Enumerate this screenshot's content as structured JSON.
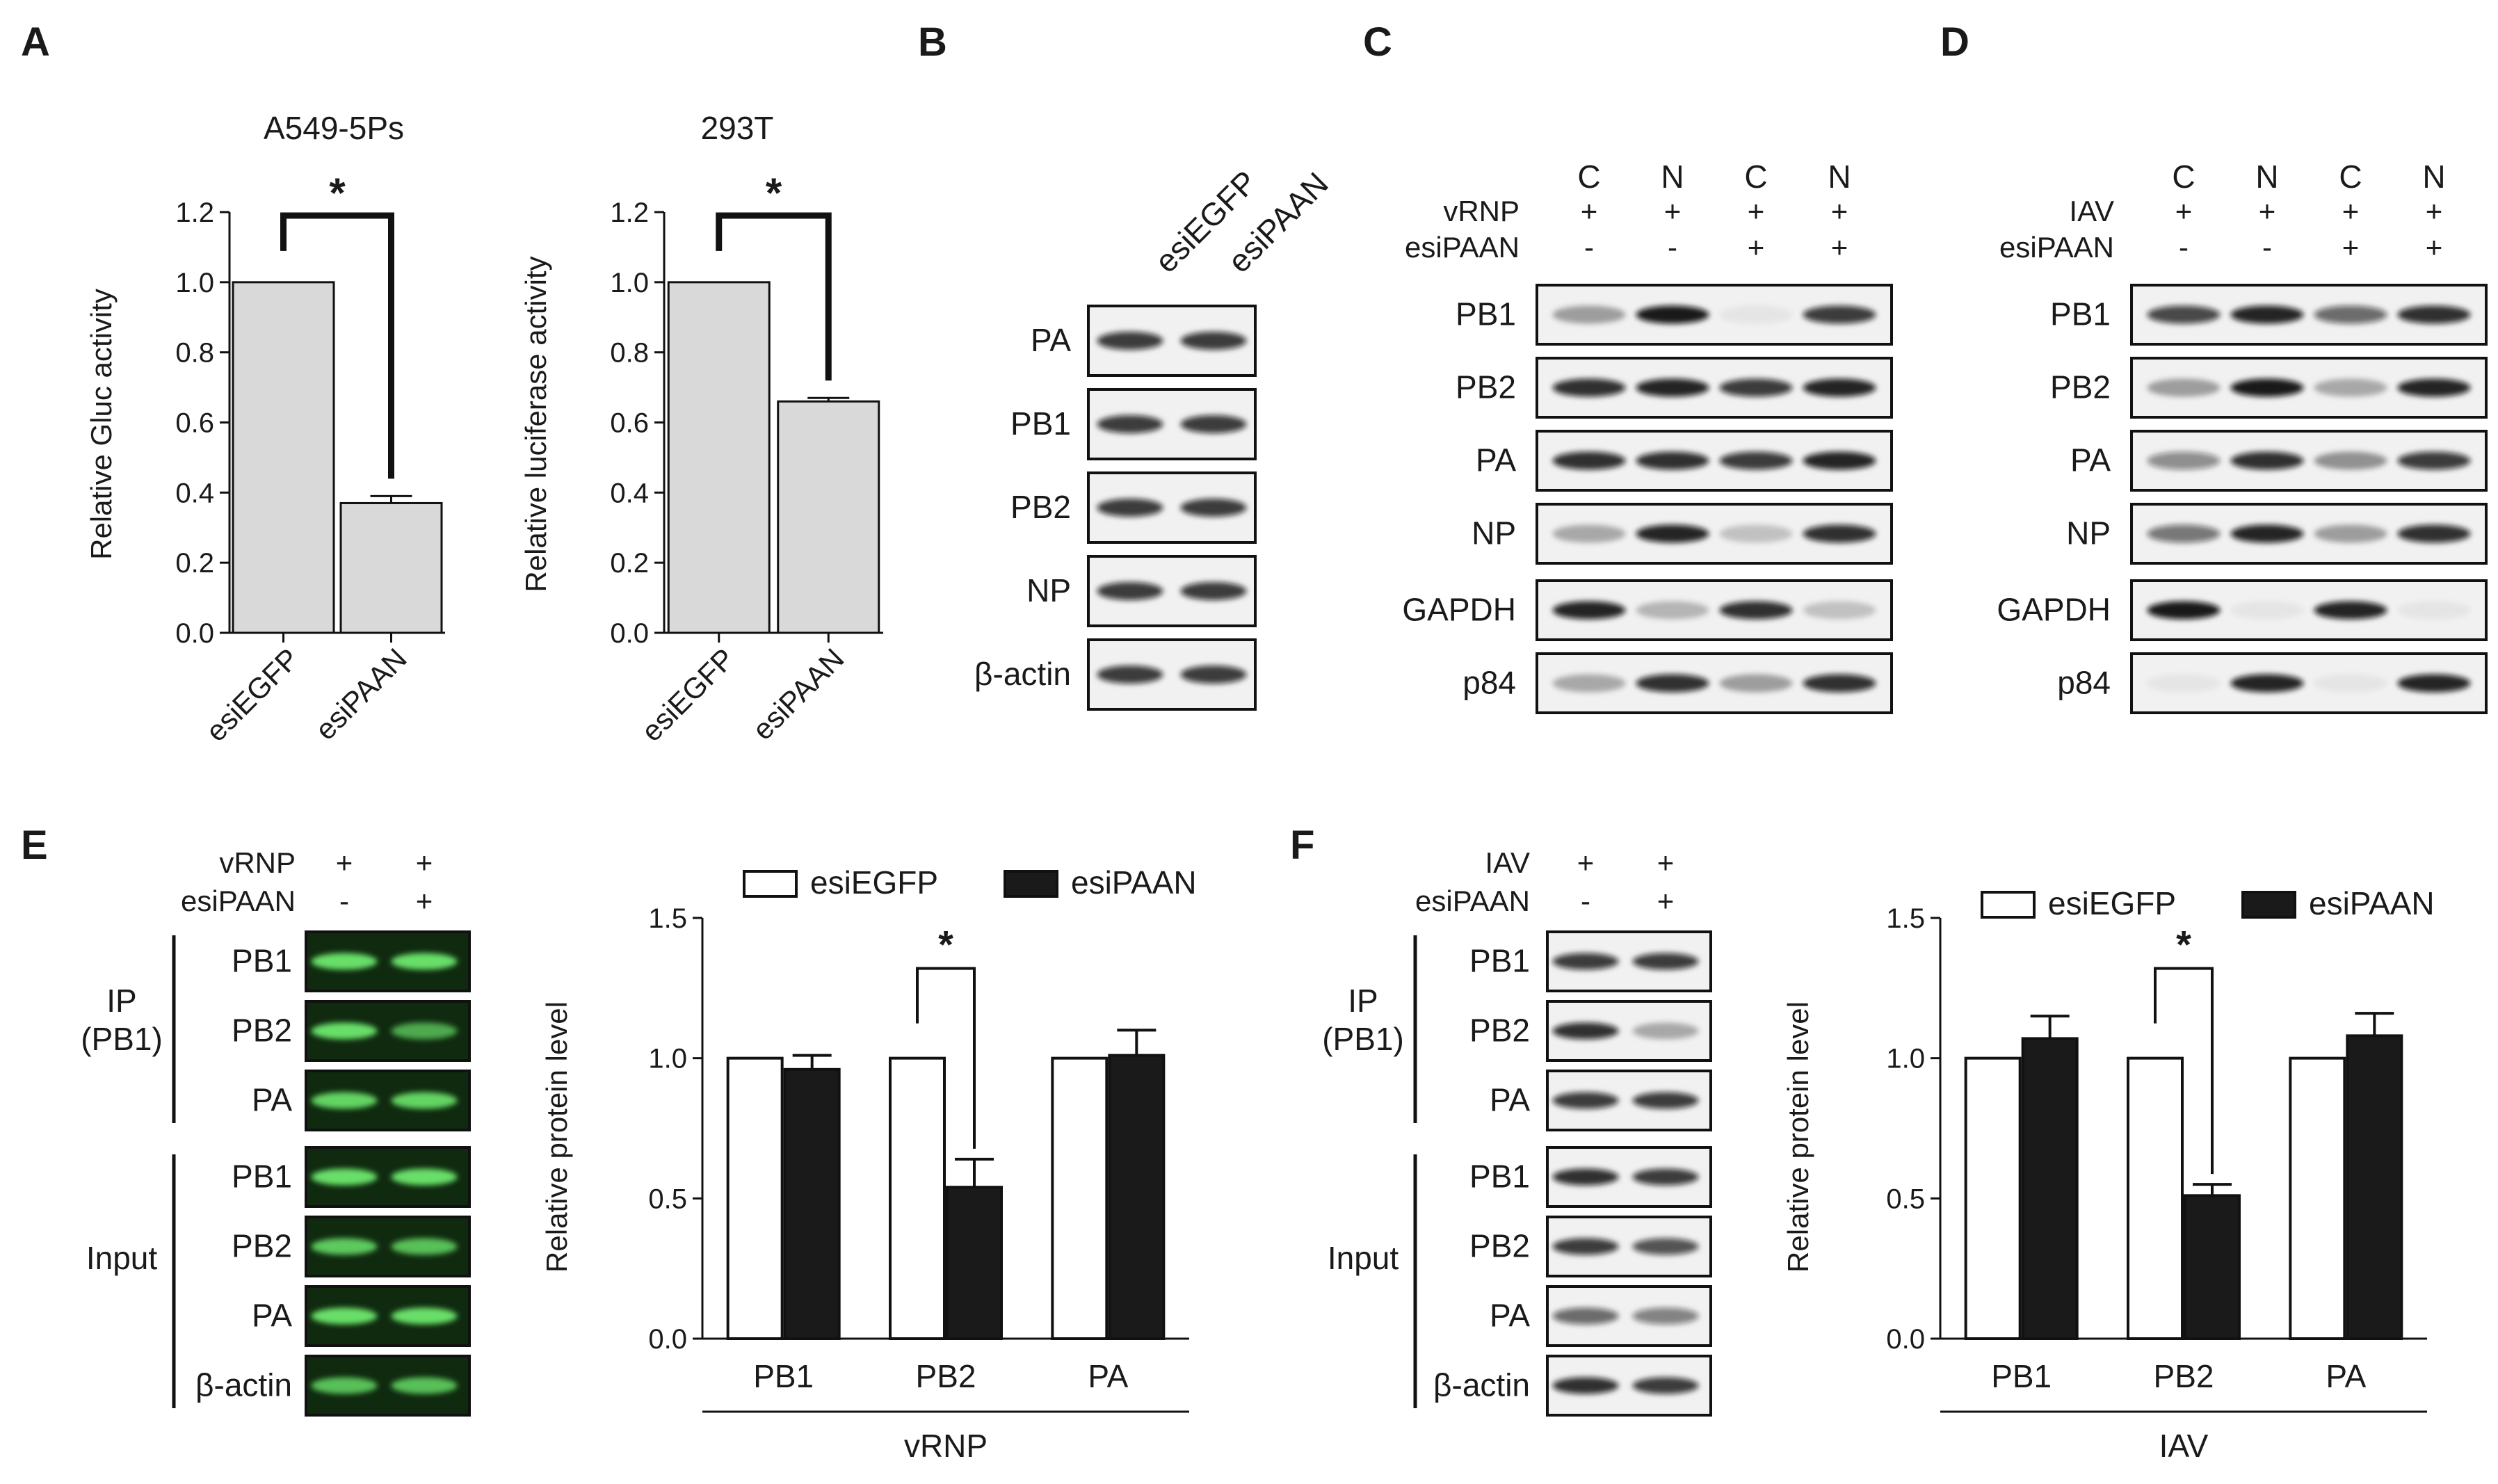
{
  "panels": {
    "A": {
      "letter": "A"
    },
    "B": {
      "letter": "B"
    },
    "C": {
      "letter": "C"
    },
    "D": {
      "letter": "D"
    },
    "E": {
      "letter": "E"
    },
    "F": {
      "letter": "F"
    }
  },
  "chart_data": [
    {
      "id": "A1",
      "type": "bar",
      "title": "A549-5Ps",
      "categories": [
        "esiEGFP",
        "esiPAAN"
      ],
      "values": [
        1.0,
        0.37
      ],
      "errors": [
        0,
        0.02
      ],
      "ylabel": "Relative Gluc activity",
      "xlabel": "",
      "ylim": [
        0,
        1.2
      ],
      "yticks": [
        "0.0",
        "0.2",
        "0.4",
        "0.6",
        "0.8",
        "1.0",
        "1.2"
      ],
      "significance": "*",
      "color": "#d9d9d9"
    },
    {
      "id": "A2",
      "type": "bar",
      "title": "293T",
      "categories": [
        "esiEGFP",
        "esiPAAN"
      ],
      "values": [
        1.0,
        0.66
      ],
      "errors": [
        0,
        0.01
      ],
      "ylabel": "Relative luciferase activity",
      "xlabel": "",
      "ylim": [
        0,
        1.2
      ],
      "yticks": [
        "0.0",
        "0.2",
        "0.4",
        "0.6",
        "0.8",
        "1.0",
        "1.2"
      ],
      "significance": "*",
      "color": "#d9d9d9"
    },
    {
      "id": "E",
      "type": "bar",
      "title": "",
      "categories": [
        "PB1",
        "PB2",
        "PA"
      ],
      "series": [
        {
          "name": "esiEGFP",
          "values": [
            1.0,
            1.0,
            1.0
          ],
          "errors": [
            0,
            0,
            0
          ],
          "color": "#ffffff"
        },
        {
          "name": "esiPAAN",
          "values": [
            0.96,
            0.54,
            1.01
          ],
          "errors": [
            0.05,
            0.1,
            0.09
          ],
          "color": "#1a1a1a"
        }
      ],
      "ylabel": "Relative protein level",
      "xlabel": "vRNP",
      "ylim": [
        0,
        1.5
      ],
      "yticks": [
        "0.0",
        "0.5",
        "1.0",
        "1.5"
      ],
      "significance": "*",
      "legend": "top"
    },
    {
      "id": "F",
      "type": "bar",
      "title": "",
      "categories": [
        "PB1",
        "PB2",
        "PA"
      ],
      "series": [
        {
          "name": "esiEGFP",
          "values": [
            1.0,
            1.0,
            1.0
          ],
          "errors": [
            0,
            0,
            0
          ],
          "color": "#ffffff"
        },
        {
          "name": "esiPAAN",
          "values": [
            1.07,
            0.51,
            1.08
          ],
          "errors": [
            0.08,
            0.04,
            0.08
          ],
          "color": "#1a1a1a"
        }
      ],
      "ylabel": "Relative protein level",
      "xlabel": "IAV",
      "ylim": [
        0,
        1.5
      ],
      "yticks": [
        "0.0",
        "0.5",
        "1.0",
        "1.5"
      ],
      "significance": "*",
      "legend": "top"
    }
  ],
  "blots": {
    "B": {
      "lanes": [
        "esiEGFP",
        "esiPAAN"
      ],
      "rows": [
        "PA",
        "PB1",
        "PB2",
        "NP",
        "β-actin"
      ]
    },
    "C": {
      "lanes": [
        "C",
        "N",
        "C",
        "N"
      ],
      "conditions": [
        {
          "label": "vRNP",
          "values": [
            "+",
            "+",
            "+",
            "+"
          ]
        },
        {
          "label": "esiPAAN",
          "values": [
            "-",
            "-",
            "+",
            "+"
          ]
        }
      ],
      "rows": [
        "PB1",
        "PB2",
        "PA",
        "NP",
        "GAPDH",
        "p84"
      ]
    },
    "D": {
      "lanes": [
        "C",
        "N",
        "C",
        "N"
      ],
      "conditions": [
        {
          "label": "IAV",
          "values": [
            "+",
            "+",
            "+",
            "+"
          ]
        },
        {
          "label": "esiPAAN",
          "values": [
            "-",
            "-",
            "+",
            "+"
          ]
        }
      ],
      "rows": [
        "PB1",
        "PB2",
        "PA",
        "NP",
        "GAPDH",
        "p84"
      ]
    },
    "E": {
      "conditions": [
        {
          "label": "vRNP",
          "values": [
            "+",
            "+"
          ]
        },
        {
          "label": "esiPAAN",
          "values": [
            "-",
            "+"
          ]
        }
      ],
      "group1": "IP (PB1)",
      "group1_rows": [
        "PB1",
        "PB2",
        "PA"
      ],
      "group2": "Input",
      "group2_rows": [
        "PB1",
        "PB2",
        "PA",
        "β-actin"
      ]
    },
    "F": {
      "conditions": [
        {
          "label": "IAV",
          "values": [
            "+",
            "+"
          ]
        },
        {
          "label": "esiPAAN",
          "values": [
            "-",
            "+"
          ]
        }
      ],
      "group1": "IP (PB1)",
      "group1_rows": [
        "PB1",
        "PB2",
        "PA"
      ],
      "group2": "Input",
      "group2_rows": [
        "PB1",
        "PB2",
        "PA",
        "β-actin"
      ]
    }
  }
}
